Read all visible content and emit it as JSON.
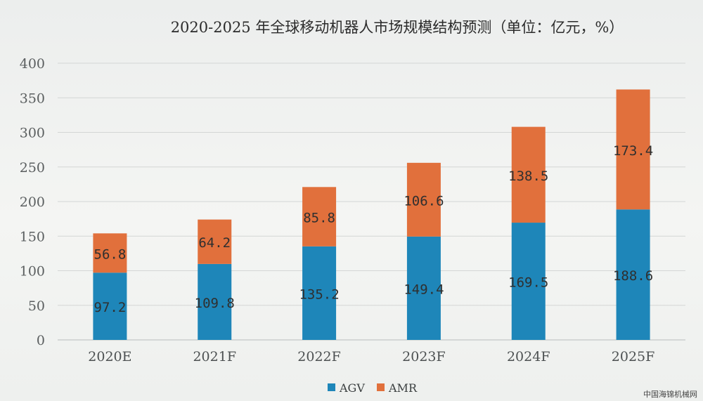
{
  "chart_data": {
    "type": "bar",
    "stacked": true,
    "title": "2020-2025 年全球移动机器人市场规模结构预测（单位：亿元，%）",
    "categories": [
      "2020E",
      "2021F",
      "2022F",
      "2023F",
      "2024F",
      "2025F"
    ],
    "series": [
      {
        "name": "AGV",
        "color": "#1e86b9",
        "values": [
          97.2,
          109.8,
          135.2,
          149.4,
          169.5,
          188.6
        ]
      },
      {
        "name": "AMR",
        "color": "#e1703c",
        "values": [
          56.8,
          64.2,
          85.8,
          106.6,
          138.5,
          173.4
        ]
      }
    ],
    "data_labels": [
      [
        "97.2",
        "109.8",
        "135.2",
        "149.4",
        "169.5",
        "188.6"
      ],
      [
        "56.8",
        "64.2",
        "85.8",
        "106.6",
        "138.5",
        "173.4"
      ]
    ],
    "ylim": [
      0,
      400
    ],
    "yticks": [
      "0",
      "50",
      "100",
      "150",
      "200",
      "250",
      "300",
      "350",
      "400"
    ],
    "grid": true,
    "legend_position": "bottom-center"
  },
  "watermark": "中国海锦机械网"
}
